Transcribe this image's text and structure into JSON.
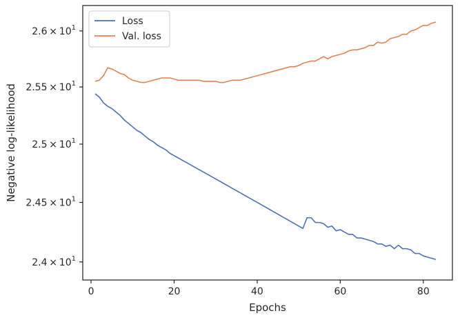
{
  "chart_data": {
    "type": "line",
    "xlabel": "Epochs",
    "ylabel": "Negative log-likelihood",
    "xlim": [
      -2,
      87
    ],
    "ylim": [
      23.85,
      26.23
    ],
    "yscale": "log",
    "grid": false,
    "legend_position": "top-left",
    "x_ticks": [
      0,
      20,
      40,
      60,
      80
    ],
    "x_tick_labels": [
      "0",
      "20",
      "40",
      "60",
      "80"
    ],
    "y_ticks": [
      24.0,
      24.5,
      25.0,
      25.5,
      26.0
    ],
    "y_tick_labels": [
      {
        "mantissa": "2.4",
        "base": "10",
        "exponent": "1"
      },
      {
        "mantissa": "2.45",
        "base": "10",
        "exponent": "1"
      },
      {
        "mantissa": "2.5",
        "base": "10",
        "exponent": "1"
      },
      {
        "mantissa": "2.55",
        "base": "10",
        "exponent": "1"
      },
      {
        "mantissa": "2.6",
        "base": "10",
        "exponent": "1"
      }
    ],
    "series": [
      {
        "name": "Loss",
        "color": "#4c72b0",
        "x": [
          1,
          2,
          3,
          4,
          5,
          6,
          7,
          8,
          9,
          10,
          11,
          12,
          13,
          14,
          15,
          16,
          17,
          18,
          19,
          20,
          21,
          22,
          23,
          24,
          25,
          26,
          27,
          28,
          29,
          30,
          31,
          32,
          33,
          34,
          35,
          36,
          37,
          38,
          39,
          40,
          41,
          42,
          43,
          44,
          45,
          46,
          47,
          48,
          49,
          50,
          51,
          52,
          53,
          54,
          55,
          56,
          57,
          58,
          59,
          60,
          61,
          62,
          63,
          64,
          65,
          66,
          67,
          68,
          69,
          70,
          71,
          72,
          73,
          74,
          75,
          76,
          77,
          78,
          79,
          80,
          81,
          82,
          83
        ],
        "y": [
          25.44,
          25.41,
          25.36,
          25.33,
          25.31,
          25.28,
          25.25,
          25.21,
          25.18,
          25.15,
          25.12,
          25.1,
          25.07,
          25.04,
          25.02,
          24.99,
          24.97,
          24.95,
          24.92,
          24.9,
          24.88,
          24.86,
          24.84,
          24.82,
          24.8,
          24.78,
          24.76,
          24.74,
          24.72,
          24.7,
          24.68,
          24.66,
          24.64,
          24.62,
          24.6,
          24.58,
          24.56,
          24.54,
          24.52,
          24.5,
          24.48,
          24.46,
          24.44,
          24.42,
          24.4,
          24.38,
          24.36,
          24.34,
          24.32,
          24.3,
          24.28,
          24.37,
          24.37,
          24.33,
          24.33,
          24.32,
          24.29,
          24.3,
          24.26,
          24.27,
          24.25,
          24.23,
          24.23,
          24.2,
          24.2,
          24.19,
          24.18,
          24.17,
          24.15,
          24.15,
          24.13,
          24.14,
          24.11,
          24.14,
          24.11,
          24.11,
          24.1,
          24.07,
          24.07,
          24.05,
          24.04,
          24.03,
          24.02
        ]
      },
      {
        "name": "Val. loss",
        "color": "#dd8452",
        "x": [
          1,
          2,
          3,
          4,
          5,
          6,
          7,
          8,
          9,
          10,
          11,
          12,
          13,
          14,
          15,
          16,
          17,
          18,
          19,
          20,
          21,
          22,
          23,
          24,
          25,
          26,
          27,
          28,
          29,
          30,
          31,
          32,
          33,
          34,
          35,
          36,
          37,
          38,
          39,
          40,
          41,
          42,
          43,
          44,
          45,
          46,
          47,
          48,
          49,
          50,
          51,
          52,
          53,
          54,
          55,
          56,
          57,
          58,
          59,
          60,
          61,
          62,
          63,
          64,
          65,
          66,
          67,
          68,
          69,
          70,
          71,
          72,
          73,
          74,
          75,
          76,
          77,
          78,
          79,
          80,
          81,
          82,
          83
        ],
        "y": [
          25.55,
          25.56,
          25.6,
          25.67,
          25.66,
          25.64,
          25.62,
          25.61,
          25.58,
          25.56,
          25.55,
          25.54,
          25.54,
          25.55,
          25.56,
          25.57,
          25.58,
          25.58,
          25.58,
          25.57,
          25.56,
          25.56,
          25.56,
          25.56,
          25.56,
          25.56,
          25.55,
          25.55,
          25.55,
          25.55,
          25.54,
          25.54,
          25.55,
          25.56,
          25.56,
          25.56,
          25.57,
          25.58,
          25.59,
          25.6,
          25.61,
          25.62,
          25.63,
          25.64,
          25.65,
          25.66,
          25.67,
          25.68,
          25.68,
          25.69,
          25.71,
          25.72,
          25.73,
          25.73,
          25.75,
          25.77,
          25.75,
          25.77,
          25.78,
          25.79,
          25.8,
          25.82,
          25.83,
          25.83,
          25.84,
          25.85,
          25.87,
          25.87,
          25.9,
          25.89,
          25.9,
          25.93,
          25.94,
          25.95,
          25.97,
          25.97,
          26.0,
          26.01,
          26.03,
          26.05,
          26.05,
          26.07,
          26.08
        ]
      }
    ]
  }
}
